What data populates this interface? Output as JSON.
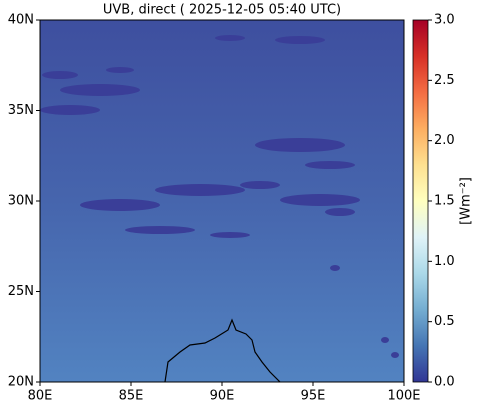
{
  "chart_data": {
    "type": "heatmap",
    "title": "UVB, direct ( 2025-12-05 05:40 UTC)",
    "xlim": [
      80,
      100
    ],
    "xticks": [
      {
        "value": 80,
        "label": "80E"
      },
      {
        "value": 85,
        "label": "85E"
      },
      {
        "value": 90,
        "label": "90E"
      },
      {
        "value": 95,
        "label": "95E"
      },
      {
        "value": 100,
        "label": "100E"
      }
    ],
    "ylim": [
      20,
      40
    ],
    "yticks": [
      {
        "value": 20,
        "label": "20N"
      },
      {
        "value": 25,
        "label": "25N"
      },
      {
        "value": 30,
        "label": "30N"
      },
      {
        "value": 35,
        "label": "35N"
      },
      {
        "value": 40,
        "label": "40N"
      }
    ],
    "colorbar": {
      "label": "[Wm⁻²]",
      "lim": [
        0,
        3
      ],
      "ticks": [
        {
          "value": 0,
          "label": "0.0"
        },
        0.5,
        {
          "value": 1,
          "label": "1.0"
        },
        1.5,
        {
          "value": 2,
          "label": "2.0"
        },
        2.5,
        {
          "value": 3,
          "label": "3.0"
        }
      ],
      "colors": [
        "#313695",
        "#4575b4",
        "#74add1",
        "#abd9e9",
        "#e0f3f8",
        "#ffffbf",
        "#fee090",
        "#fdae61",
        "#f46d43",
        "#d73027",
        "#a50026"
      ]
    }
  }
}
